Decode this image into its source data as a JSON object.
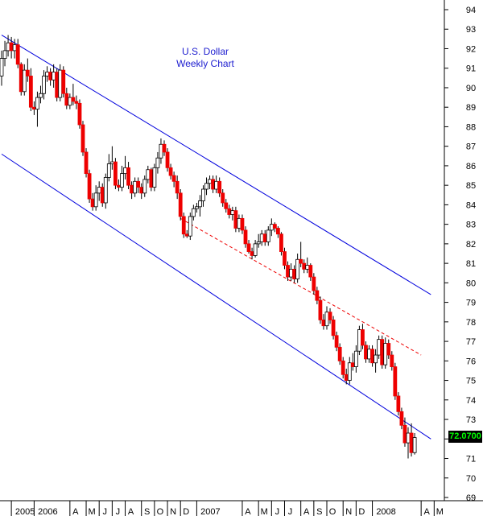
{
  "chart_data": {
    "type": "candlestick",
    "title": "U.S. Dollar",
    "subtitle": "Weekly Chart",
    "last_price": "72.0700",
    "ylim": [
      68.5,
      94.5
    ],
    "y_ticks": [
      69,
      70,
      71,
      72,
      73,
      74,
      75,
      76,
      77,
      78,
      79,
      80,
      81,
      82,
      83,
      84,
      85,
      86,
      87,
      88,
      89,
      90,
      91,
      92,
      93,
      94
    ],
    "x_ticks": [
      "2005",
      "2006",
      "A",
      "M",
      "J",
      "J",
      "A",
      "S",
      "O",
      "N",
      "D",
      "2007",
      "A",
      "M",
      "J",
      "J",
      "A",
      "S",
      "O",
      "N",
      "D",
      "2008",
      "A",
      "M"
    ],
    "x_tick_weeks": [
      3,
      10,
      21,
      26,
      30,
      34,
      38,
      43,
      47,
      51,
      55,
      60,
      74,
      79,
      83,
      87,
      92,
      96,
      100,
      105,
      109,
      114,
      129,
      133
    ],
    "colors": {
      "up": "#ffffff",
      "down": "#ee0000",
      "channel": "#0000dd",
      "trend": "#ee0000"
    },
    "channel_upper": [
      [
        0,
        92.7
      ],
      [
        132,
        79.4
      ]
    ],
    "channel_lower": [
      [
        0,
        86.6
      ],
      [
        132,
        72.0
      ]
    ],
    "trendline_dashed": [
      [
        55,
        83.3
      ],
      [
        129,
        76.3
      ]
    ],
    "ohlc": [
      [
        90.6,
        91.9,
        90.1,
        91.5
      ],
      [
        91.5,
        92.4,
        91.1,
        91.9
      ],
      [
        91.9,
        92.7,
        91.6,
        92.3
      ],
      [
        92.3,
        92.6,
        91.5,
        91.9
      ],
      [
        91.9,
        92.5,
        91.5,
        92.2
      ],
      [
        92.2,
        92.5,
        91.0,
        91.2
      ],
      [
        91.2,
        91.3,
        89.6,
        89.8
      ],
      [
        89.8,
        91.2,
        89.6,
        90.9
      ],
      [
        90.9,
        91.5,
        90.3,
        90.6
      ],
      [
        90.6,
        91.0,
        88.8,
        89.0
      ],
      [
        89.0,
        89.3,
        88.6,
        88.9
      ],
      [
        88.9,
        89.8,
        88.0,
        89.5
      ],
      [
        89.5,
        90.1,
        89.2,
        89.7
      ],
      [
        89.7,
        90.9,
        89.4,
        90.6
      ],
      [
        90.6,
        91.1,
        90.3,
        90.8
      ],
      [
        90.8,
        91.0,
        90.1,
        90.4
      ],
      [
        90.4,
        91.2,
        90.0,
        90.8
      ],
      [
        90.8,
        91.0,
        89.3,
        89.5
      ],
      [
        89.5,
        91.2,
        89.3,
        90.9
      ],
      [
        90.9,
        91.1,
        89.5,
        89.7
      ],
      [
        89.7,
        90.0,
        88.9,
        89.1
      ],
      [
        89.1,
        89.7,
        88.9,
        89.5
      ],
      [
        89.5,
        90.2,
        89.1,
        89.3
      ],
      [
        89.3,
        89.6,
        88.9,
        89.2
      ],
      [
        89.2,
        89.4,
        87.9,
        88.1
      ],
      [
        88.1,
        88.3,
        86.5,
        86.7
      ],
      [
        86.7,
        86.9,
        85.4,
        85.6
      ],
      [
        85.6,
        85.8,
        84.1,
        84.3
      ],
      [
        84.3,
        84.6,
        83.7,
        83.9
      ],
      [
        83.9,
        85.0,
        83.7,
        84.6
      ],
      [
        84.6,
        85.2,
        84.2,
        84.9
      ],
      [
        84.9,
        85.1,
        83.9,
        84.1
      ],
      [
        84.1,
        85.6,
        83.8,
        85.4
      ],
      [
        85.4,
        86.6,
        85.2,
        86.1
      ],
      [
        86.1,
        87.0,
        85.8,
        86.2
      ],
      [
        86.2,
        86.4,
        84.8,
        85.0
      ],
      [
        85.0,
        85.3,
        84.7,
        84.9
      ],
      [
        84.9,
        86.0,
        84.7,
        85.6
      ],
      [
        85.6,
        86.5,
        85.3,
        85.9
      ],
      [
        85.9,
        86.2,
        84.8,
        85.0
      ],
      [
        85.0,
        85.2,
        84.3,
        84.6
      ],
      [
        84.6,
        85.4,
        84.4,
        85.2
      ],
      [
        85.2,
        85.4,
        84.6,
        84.9
      ],
      [
        84.9,
        85.1,
        84.3,
        84.6
      ],
      [
        84.6,
        85.5,
        84.4,
        85.3
      ],
      [
        85.3,
        86.0,
        85.1,
        85.8
      ],
      [
        85.8,
        85.9,
        84.7,
        84.9
      ],
      [
        84.9,
        86.1,
        84.7,
        85.9
      ],
      [
        85.9,
        86.7,
        85.6,
        86.4
      ],
      [
        86.4,
        87.4,
        86.1,
        87.1
      ],
      [
        87.1,
        87.3,
        86.5,
        86.7
      ],
      [
        86.7,
        86.9,
        85.7,
        85.9
      ],
      [
        85.9,
        86.1,
        85.3,
        85.5
      ],
      [
        85.5,
        85.7,
        84.9,
        85.2
      ],
      [
        85.2,
        85.5,
        84.3,
        84.6
      ],
      [
        84.6,
        84.8,
        83.2,
        83.4
      ],
      [
        83.4,
        83.6,
        82.3,
        82.5
      ],
      [
        82.5,
        82.7,
        82.3,
        82.4
      ],
      [
        82.4,
        83.6,
        82.2,
        83.4
      ],
      [
        83.4,
        84.0,
        83.2,
        83.8
      ],
      [
        83.8,
        84.1,
        83.6,
        83.9
      ],
      [
        83.9,
        84.5,
        83.4,
        84.2
      ],
      [
        84.2,
        85.0,
        83.9,
        84.8
      ],
      [
        84.8,
        85.4,
        84.5,
        85.1
      ],
      [
        85.1,
        85.5,
        84.8,
        85.3
      ],
      [
        85.3,
        85.5,
        84.6,
        84.8
      ],
      [
        84.8,
        85.5,
        84.6,
        85.2
      ],
      [
        85.2,
        85.4,
        84.4,
        84.6
      ],
      [
        84.6,
        84.8,
        83.9,
        84.1
      ],
      [
        84.1,
        84.3,
        83.6,
        83.8
      ],
      [
        83.8,
        84.0,
        83.3,
        83.5
      ],
      [
        83.5,
        83.9,
        83.2,
        83.7
      ],
      [
        83.7,
        83.9,
        82.6,
        82.8
      ],
      [
        82.8,
        83.5,
        82.6,
        83.3
      ],
      [
        83.3,
        83.5,
        82.5,
        82.7
      ],
      [
        82.7,
        82.9,
        81.8,
        82.0
      ],
      [
        82.0,
        82.2,
        81.5,
        81.6
      ],
      [
        81.6,
        81.8,
        81.2,
        81.4
      ],
      [
        81.4,
        82.2,
        81.3,
        82.0
      ],
      [
        82.0,
        82.5,
        81.8,
        82.1
      ],
      [
        82.1,
        82.7,
        81.9,
        82.5
      ],
      [
        82.5,
        82.7,
        81.9,
        82.1
      ],
      [
        82.1,
        82.9,
        81.9,
        82.7
      ],
      [
        82.7,
        83.3,
        82.4,
        83.0
      ],
      [
        83.0,
        83.1,
        82.6,
        82.8
      ],
      [
        82.8,
        82.9,
        82.3,
        82.5
      ],
      [
        82.5,
        82.6,
        81.4,
        81.6
      ],
      [
        81.6,
        81.8,
        80.7,
        80.9
      ],
      [
        80.9,
        81.1,
        80.1,
        80.3
      ],
      [
        80.3,
        81.0,
        80.1,
        80.7
      ],
      [
        80.7,
        80.9,
        80.0,
        80.2
      ],
      [
        80.2,
        81.5,
        80.0,
        81.2
      ],
      [
        81.2,
        82.1,
        80.8,
        81.0
      ],
      [
        81.0,
        81.2,
        80.5,
        80.7
      ],
      [
        80.7,
        81.3,
        80.5,
        80.9
      ],
      [
        80.9,
        81.0,
        80.1,
        80.3
      ],
      [
        80.3,
        80.5,
        79.4,
        79.6
      ],
      [
        79.6,
        79.8,
        78.9,
        79.1
      ],
      [
        79.1,
        79.3,
        77.9,
        78.1
      ],
      [
        78.1,
        78.4,
        77.6,
        77.8
      ],
      [
        77.8,
        78.8,
        77.6,
        78.5
      ],
      [
        78.5,
        78.7,
        77.9,
        78.1
      ],
      [
        78.1,
        78.3,
        77.1,
        77.3
      ],
      [
        77.3,
        77.5,
        76.5,
        76.7
      ],
      [
        76.7,
        76.9,
        75.8,
        76.0
      ],
      [
        76.0,
        76.2,
        75.1,
        75.3
      ],
      [
        75.3,
        75.6,
        74.8,
        75.0
      ],
      [
        75.0,
        76.2,
        74.8,
        75.9
      ],
      [
        75.9,
        76.4,
        75.5,
        75.7
      ],
      [
        75.7,
        76.8,
        75.4,
        76.5
      ],
      [
        76.5,
        77.8,
        76.3,
        77.6
      ],
      [
        77.6,
        77.9,
        76.6,
        76.8
      ],
      [
        76.8,
        77.0,
        75.9,
        76.1
      ],
      [
        76.1,
        76.8,
        75.9,
        76.6
      ],
      [
        76.6,
        76.8,
        75.7,
        75.9
      ],
      [
        75.9,
        76.6,
        75.4,
        76.3
      ],
      [
        76.3,
        77.3,
        76.1,
        77.1
      ],
      [
        77.1,
        77.3,
        75.6,
        75.8
      ],
      [
        75.8,
        77.2,
        75.6,
        76.9
      ],
      [
        76.9,
        77.1,
        76.1,
        76.3
      ],
      [
        76.3,
        76.5,
        75.5,
        75.7
      ],
      [
        75.7,
        75.9,
        74.0,
        74.2
      ],
      [
        74.2,
        74.4,
        73.2,
        73.4
      ],
      [
        73.4,
        73.6,
        72.5,
        72.7
      ],
      [
        72.7,
        73.1,
        71.6,
        71.8
      ],
      [
        71.8,
        72.6,
        71.0,
        72.3
      ],
      [
        72.3,
        72.8,
        71.1,
        71.3
      ],
      [
        71.3,
        72.3,
        71.2,
        72.07
      ]
    ]
  }
}
